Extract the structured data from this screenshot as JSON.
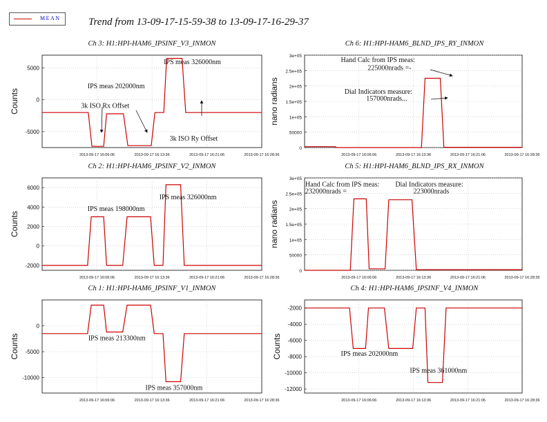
{
  "legend": {
    "label": "MEAN",
    "color": "#cc0000"
  },
  "title": "Trend from 13-09-17-15-59-38 to 13-09-17-16-29-37",
  "chart_data": [
    {
      "id": "ch3",
      "type": "line",
      "title": "Ch 3: H1:HPI-HAM6_IPSINF_V3_INMON",
      "ylabel": "Counts",
      "ylim": [
        -7500,
        7000
      ],
      "yticks": [
        -5000,
        0,
        5000
      ],
      "ytick_labels": [
        "-5000",
        "0",
        "5000"
      ],
      "xtick_labels": [
        "2013-09-17 16:06:06",
        "2013-09-17 16:13:36",
        "2013-09-17 16:21:06",
        "2013-09-17 16:28:36"
      ],
      "series": [
        {
          "color": "#cc0000",
          "x": [
            0,
            6.3,
            6.8,
            8.4,
            8.8,
            11.1,
            11.7,
            14.9,
            15.4,
            16.6,
            17.0,
            19.1,
            19.6,
            29.98
          ],
          "y": [
            -2000,
            -2000,
            -7300,
            -7300,
            -2200,
            -2200,
            -7200,
            -7200,
            -2000,
            -2000,
            6500,
            6500,
            -2000,
            -2000
          ]
        }
      ],
      "annotations": [
        {
          "text": "IPS meas 326000nm",
          "x": 16.6,
          "y": 5600
        },
        {
          "text": "IPS meas 202000nm",
          "x": 6.2,
          "y": 1800
        },
        {
          "text": "3k ISO Rx Offset",
          "x": 5.3,
          "y": -1300
        },
        {
          "text": "3k ISO Ry Offset",
          "x": 17.4,
          "y": -6400
        }
      ]
    },
    {
      "id": "ch6",
      "type": "line",
      "title": "Ch 6: H1:HPI-HAM6_BLND_IPS_RY_INMON",
      "ylabel": "nano radians",
      "ylim": [
        0,
        300000
      ],
      "yticks": [
        0,
        50000,
        100000,
        150000,
        200000,
        250000,
        300000
      ],
      "ytick_labels": [
        "0",
        "50000",
        "1e+05",
        "1.5e+05",
        "2e+05",
        "2.5e+05",
        "3e+05"
      ],
      "xtick_labels": [
        "2013-09-17 16:06:06",
        "2013-09-17 16:13:36",
        "2013-09-17 16:21:06",
        "2013-09-17 16:28:36"
      ],
      "series": [
        {
          "color": "#cc0000",
          "x": [
            0,
            4.2,
            4.5,
            16.1,
            16.6,
            18.7,
            19.2,
            29.98
          ],
          "y": [
            3000,
            3000,
            0,
            0,
            225000,
            225000,
            1000,
            1000
          ]
        }
      ],
      "annotations": [
        {
          "text": "Hand Calc from IPS meas:",
          "x": 5.0,
          "y": 278000
        },
        {
          "text": "225000nrads =-",
          "x": 8.7,
          "y": 252000
        },
        {
          "text": "Dial Indicators measure:",
          "x": 5.5,
          "y": 175000
        },
        {
          "text": "157000nrads...",
          "x": 8.5,
          "y": 152000
        }
      ]
    },
    {
      "id": "ch2",
      "type": "line",
      "title": "Ch 2: H1:HPI-HAM6_IPSINF_V2_INMON",
      "ylabel": "Counts",
      "ylim": [
        -2500,
        7000
      ],
      "yticks": [
        -2000,
        0,
        2000,
        4000,
        6000
      ],
      "ytick_labels": [
        "-2000",
        "0",
        "2000",
        "4000",
        "6000"
      ],
      "xtick_labels": [
        "2013-09-17 16:06:06",
        "2013-09-17 16:13:36",
        "2013-09-17 16:21:06",
        "2013-09-17 16:28:36"
      ],
      "series": [
        {
          "color": "#cc0000",
          "x": [
            0,
            6.2,
            6.7,
            8.4,
            8.8,
            11.0,
            11.6,
            14.8,
            15.3,
            16.5,
            16.9,
            18.9,
            19.4,
            29.98
          ],
          "y": [
            -2000,
            -2000,
            3000,
            3000,
            -2000,
            -2000,
            3000,
            3000,
            -2000,
            -2000,
            6300,
            6300,
            -2000,
            -2000
          ]
        }
      ],
      "annotations": [
        {
          "text": "IPS meas 326000nm",
          "x": 16.0,
          "y": 4800
        },
        {
          "text": "IPS meas 198000nm",
          "x": 6.2,
          "y": 3600
        }
      ]
    },
    {
      "id": "ch5",
      "type": "line",
      "title": "Ch 5: H1:HPI-HAM6_BLND_IPS_RX_INMON",
      "ylabel": "nano radians",
      "ylim": [
        0,
        300000
      ],
      "yticks": [
        0,
        50000,
        100000,
        150000,
        200000,
        250000,
        300000
      ],
      "ytick_labels": [
        "0",
        "50000",
        "1e+05",
        "1.5e+05",
        "2e+05",
        "2.5e+05",
        "3e+05"
      ],
      "xtick_labels": [
        "2013-09-17 16:06:06",
        "2013-09-17 16:13:36",
        "2013-09-17 16:21:06",
        "2013-09-17 16:28:36"
      ],
      "series": [
        {
          "color": "#cc0000",
          "x": [
            0,
            6.3,
            6.8,
            8.5,
            8.9,
            11.1,
            11.6,
            14.8,
            15.4,
            29.98
          ],
          "y": [
            0,
            0,
            232000,
            232000,
            5000,
            5000,
            229000,
            229000,
            2000,
            2000
          ]
        }
      ],
      "annotations": [
        {
          "text": "Hand Calc from IPS meas:",
          "x": 0.1,
          "y": 272000
        },
        {
          "text": "232000nrads =",
          "x": 0.1,
          "y": 250000
        },
        {
          "text": "Dial Indicators measure:",
          "x": 12.5,
          "y": 272000
        },
        {
          "text": "223000nrads",
          "x": 15.0,
          "y": 250000
        }
      ]
    },
    {
      "id": "ch1",
      "type": "line",
      "title": "Ch 1: H1:HPI-HAM6_IPSINF_V1_INMON",
      "ylabel": "Counts",
      "ylim": [
        -13000,
        5000
      ],
      "yticks": [
        -10000,
        -5000,
        0
      ],
      "ytick_labels": [
        "-10000",
        "-5000",
        "0"
      ],
      "xtick_labels": [
        "2013-09-17 16:06:06",
        "2013-09-17 16:13:36",
        "2013-09-17 16:21:06",
        "2013-09-17 16:28:36"
      ],
      "series": [
        {
          "color": "#cc0000",
          "x": [
            0,
            6.2,
            6.7,
            8.4,
            8.8,
            11.0,
            11.6,
            14.8,
            15.3,
            16.5,
            16.9,
            18.9,
            19.4,
            29.98
          ],
          "y": [
            -1500,
            -1500,
            4000,
            4000,
            -1200,
            -1200,
            4000,
            4000,
            -1500,
            -1500,
            -10800,
            -10800,
            -1500,
            -1500
          ]
        }
      ],
      "annotations": [
        {
          "text": "IPS meas 213300nm",
          "x": 6.3,
          "y": -2800
        },
        {
          "text": "IPS meas 357000nm",
          "x": 14.1,
          "y": -12400
        }
      ]
    },
    {
      "id": "ch4",
      "type": "line",
      "title": "Ch 4: H1:HPI-HAM6_IPSINF_V4_INMON",
      "ylabel": "Counts",
      "ylim": [
        -12500,
        -1000
      ],
      "yticks": [
        -12000,
        -10000,
        -8000,
        -6000,
        -4000,
        -2000
      ],
      "ytick_labels": [
        "-12000",
        "-10000",
        "-8000",
        "-6000",
        "-4000",
        "-2000"
      ],
      "xtick_labels": [
        "2013-09-17 16:06:06",
        "2013-09-17 16:13:36",
        "2013-09-17 16:21:06",
        "2013-09-17 16:28:36"
      ],
      "series": [
        {
          "color": "#cc0000",
          "x": [
            0,
            6.2,
            6.7,
            8.4,
            8.8,
            11.0,
            11.6,
            14.9,
            15.4,
            16.6,
            17.0,
            19.0,
            19.5,
            29.98
          ],
          "y": [
            -2000,
            -2000,
            -7000,
            -7000,
            -2000,
            -2000,
            -7000,
            -7000,
            -2000,
            -2000,
            -11200,
            -11200,
            -2000,
            -2000
          ]
        }
      ],
      "annotations": [
        {
          "text": "IPS meas 202000nm",
          "x": 5.0,
          "y": -7900
        },
        {
          "text": "IPS meas 361000nm",
          "x": 14.5,
          "y": -10000
        }
      ]
    }
  ]
}
